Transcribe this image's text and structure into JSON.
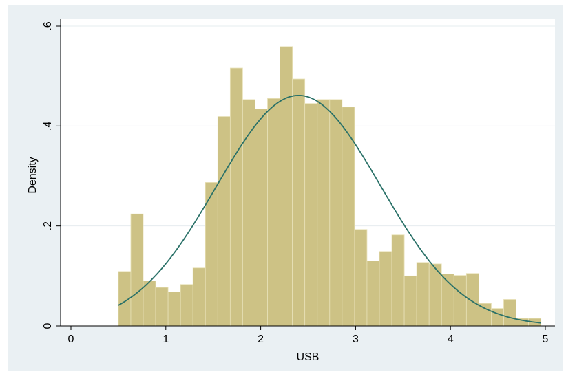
{
  "chart_data": {
    "type": "bar",
    "xlabel": "USB",
    "ylabel": "Density",
    "xlim": [
      0,
      5
    ],
    "ylim": [
      0,
      0.6
    ],
    "x_ticks": [
      0,
      1,
      2,
      3,
      4,
      5
    ],
    "x_tick_labels": [
      "0",
      "1",
      "2",
      "3",
      "4",
      "5"
    ],
    "y_ticks": [
      0,
      0.2,
      0.4,
      0.6
    ],
    "y_tick_labels": [
      "0",
      ".2",
      ".4",
      ".6"
    ],
    "grid": true,
    "bins": {
      "start": 0.5,
      "width": 0.131,
      "values": [
        0.109,
        0.224,
        0.09,
        0.077,
        0.068,
        0.083,
        0.116,
        0.287,
        0.419,
        0.516,
        0.453,
        0.434,
        0.455,
        0.559,
        0.494,
        0.445,
        0.453,
        0.453,
        0.438,
        0.193,
        0.13,
        0.149,
        0.182,
        0.1,
        0.127,
        0.124,
        0.104,
        0.101,
        0.105,
        0.045,
        0.035,
        0.053,
        0.015,
        0.015
      ]
    },
    "density_curve": {
      "type": "normal",
      "mean": 2.4,
      "sd": 0.865
    },
    "colors": {
      "bar_fill": "#cdc285",
      "bar_edge": "#e8e1b8",
      "curve": "#2a7168",
      "background": "#eaf0f3",
      "grid": "#ffffff"
    }
  }
}
